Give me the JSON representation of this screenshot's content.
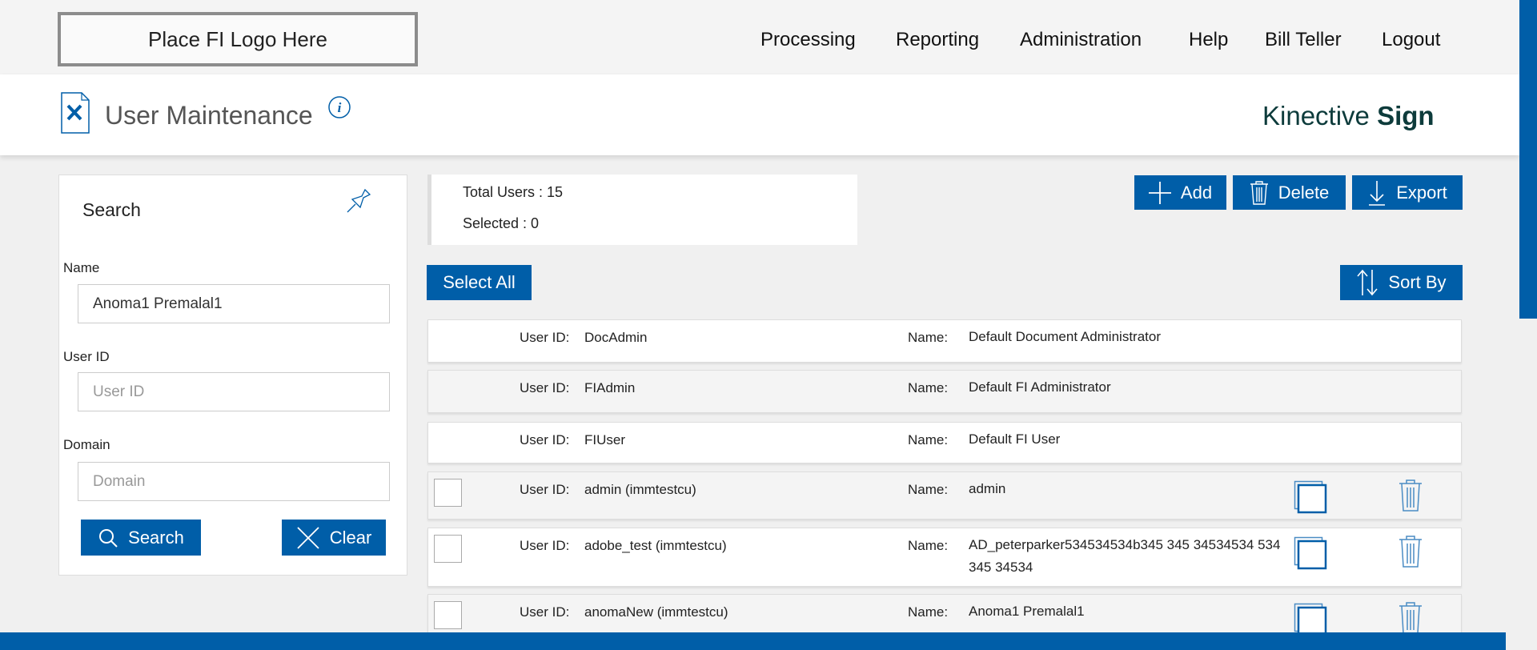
{
  "header": {
    "logo": "Place FI Logo Here",
    "nav": [
      "Processing",
      "Reporting",
      "Administration",
      "Help",
      "Bill Teller",
      "Logout"
    ]
  },
  "title": {
    "page": "User Maintenance",
    "brand_light": "Kinective",
    "brand_bold": "Sign"
  },
  "search": {
    "title": "Search",
    "name_label": "Name",
    "name_value": "Anoma1 Premalal1",
    "userid_label": "User ID",
    "userid_placeholder": "User ID",
    "domain_label": "Domain",
    "domain_placeholder": "Domain",
    "search_button": "Search",
    "clear_button": "Clear"
  },
  "stats": {
    "total": "Total Users : 15",
    "selected": "Selected : 0"
  },
  "toolbar": {
    "add": "Add",
    "delete": "Delete",
    "export": "Export",
    "select_all": "Select All",
    "sort_by": "Sort By"
  },
  "list": {
    "userid_label": "User ID:",
    "name_label": "Name:",
    "rows": [
      {
        "user_id": "DocAdmin",
        "name": "Default Document Administrator"
      },
      {
        "user_id": "FIAdmin",
        "name": "Default FI Administrator"
      },
      {
        "user_id": "FIUser",
        "name": "Default FI User"
      },
      {
        "user_id": "admin (immtestcu)",
        "name": "admin"
      },
      {
        "user_id": "adobe_test (immtestcu)",
        "name": "AD_peterparker534534534b345 345 34534534 534 345 34534"
      },
      {
        "user_id": "anomaNew (immtestcu)",
        "name": "Anoma1 Premalal1"
      }
    ]
  },
  "colors": {
    "primary": "#005ea8"
  }
}
